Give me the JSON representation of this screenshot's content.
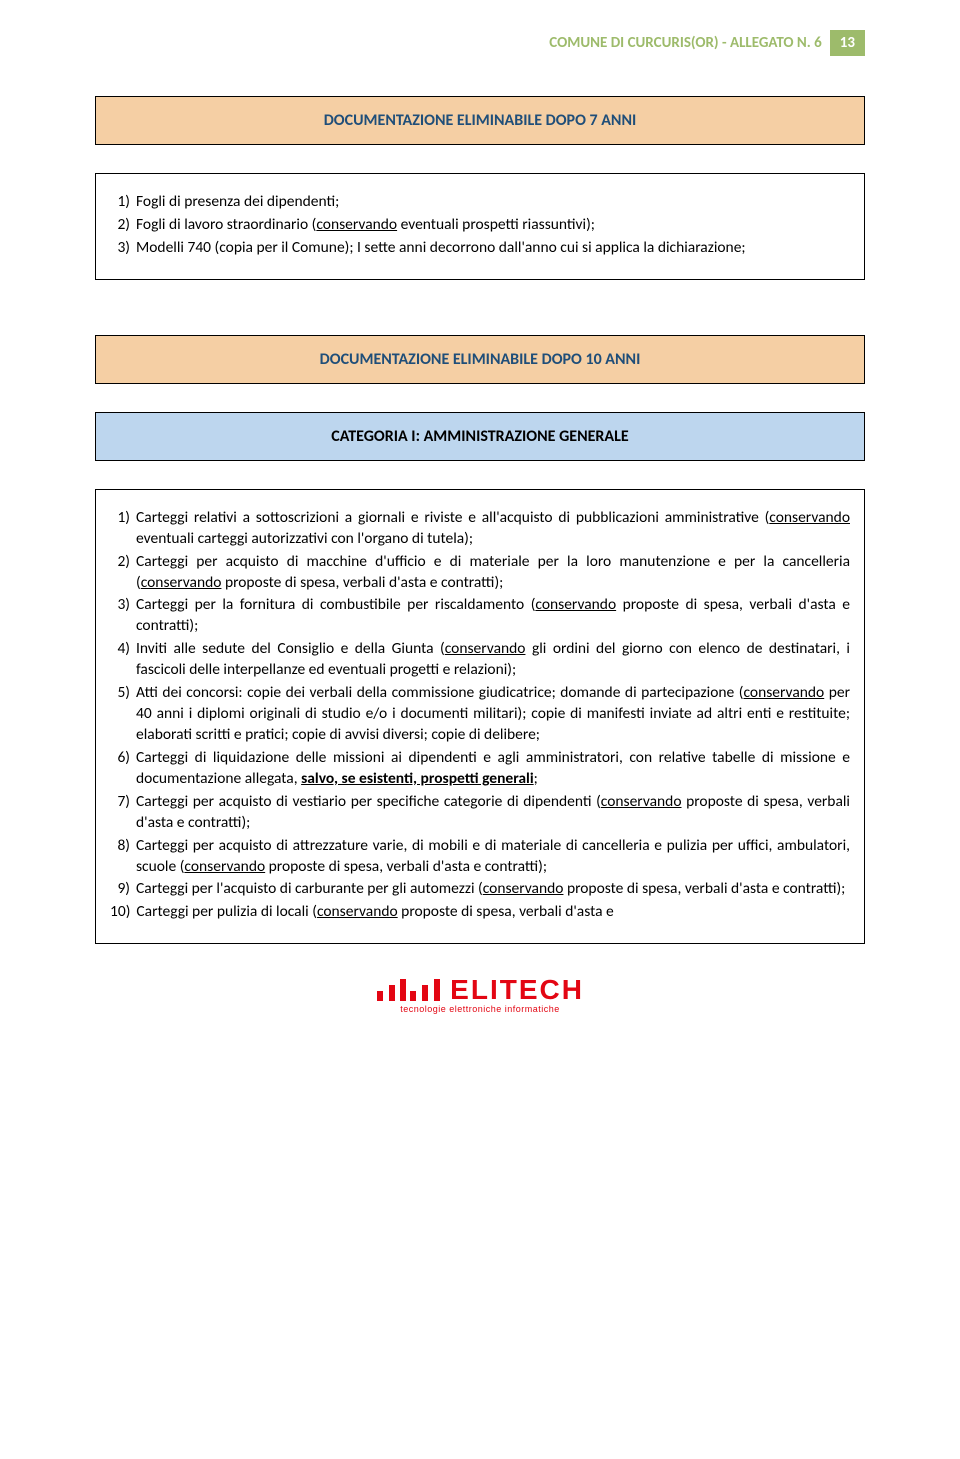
{
  "header": {
    "title": "COMUNE DI CURCURIS(OR) - ALLEGATO N. 6",
    "page_number": "13",
    "title_color": "#9dbb6b",
    "badge_bg": "#9dbb6b",
    "badge_fg": "#ffffff"
  },
  "section7": {
    "title": "DOCUMENTAZIONE ELIMINABILE DOPO 7 ANNI",
    "title_bg": "#f5cfa4",
    "title_color": "#1f4e79",
    "items": [
      {
        "n": "1)",
        "t": "Fogli di presenza dei dipendenti;"
      },
      {
        "n": "2)",
        "t": "Fogli di lavoro straordinario (<span class=\"u\">conservando</span> eventuali prospetti riassuntivi);"
      },
      {
        "n": "3)",
        "t": "Modelli 740 (copia per il Comune); I sette anni decorrono dall'anno cui si applica la dichiarazione;"
      }
    ]
  },
  "section10": {
    "title": "DOCUMENTAZIONE ELIMINABILE DOPO 10 ANNI",
    "title_bg": "#f5cfa4",
    "title_color": "#1f4e79"
  },
  "category": {
    "title": "CATEGORIA I: AMMINISTRAZIONE GENERALE",
    "title_bg": "#bdd6ee",
    "items": [
      {
        "n": "1)",
        "t": "Carteggi relativi a sottoscrizioni a giornali e riviste e all'acquisto di pubblicazioni amministrative (<span class=\"u\">conservando</span> eventuali carteggi autorizzativi con l'organo di tutela);"
      },
      {
        "n": "2)",
        "t": "Carteggi per acquisto di macchine d'ufficio e di materiale per la loro manutenzione e per la cancelleria (<span class=\"u\">conservando</span> proposte di spesa, verbali d'asta e contratti);"
      },
      {
        "n": "3)",
        "t": "Carteggi per la fornitura di combustibile per riscaldamento (<span class=\"u\">conservando</span> proposte di spesa, verbali d'asta e contratti);"
      },
      {
        "n": "4)",
        "t": "Inviti alle sedute del Consiglio e della Giunta (<span class=\"u\">conservando</span> gli ordini del giorno con elenco de destinatari, i fascicoli delle interpellanze ed eventuali progetti e relazioni);"
      },
      {
        "n": "5)",
        "t": "Atti dei concorsi: copie dei verbali della commissione giudicatrice; domande di partecipazione (<span class=\"u\">conservando</span> per 40 anni i diplomi originali di studio e/o i documenti militari); copie di manifesti inviate ad altri enti e restituite; elaborati scritti e pratici; copie di avvisi diversi; copie di delibere;"
      },
      {
        "n": "6)",
        "t": "Carteggi di liquidazione delle missioni ai dipendenti e agli amministratori, con relative tabelle di missione e documentazione allegata, <span class=\"b u\">salvo, se esistenti, prospetti generali</span>;"
      },
      {
        "n": "7)",
        "t": "Carteggi per acquisto di vestiario per specifiche categorie di dipendenti (<span class=\"u\">conservando</span> proposte di spesa, verbali d'asta e contratti);"
      },
      {
        "n": "8)",
        "t": "Carteggi per acquisto di attrezzature varie, di mobili e di materiale di cancelleria e pulizia per uffici, ambulatori, scuole (<span class=\"u\">conservando</span> proposte di spesa, verbali d'asta e contratti);"
      },
      {
        "n": "9)",
        "t": "Carteggi per l'acquisto di carburante per gli automezzi (<span class=\"u\">conservando</span> proposte di spesa, verbali d'asta e contratti);"
      },
      {
        "n": "10)",
        "t": "Carteggi per pulizia di locali (<span class=\"u\">conservando</span> proposte di spesa, verbali d'asta e"
      }
    ]
  },
  "footer": {
    "brand": "ELITECH",
    "tagline": "tecnologie elettroniche informatiche",
    "color": "#e30613"
  }
}
